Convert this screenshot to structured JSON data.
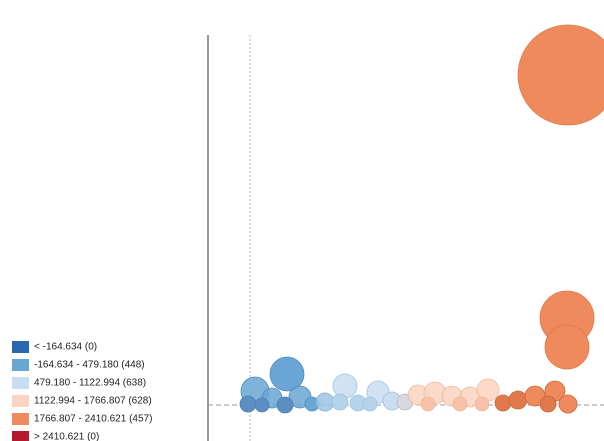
{
  "chart_data": {
    "type": "bubble",
    "legend": [
      {
        "label": "< -164.634 (0)",
        "color": "#2b67b0"
      },
      {
        "label": "-164.634 - 479.180 (448)",
        "color": "#6aa6d4"
      },
      {
        "label": "479.180 - 1122.994 (638)",
        "color": "#c9def0"
      },
      {
        "label": "1122.994 - 1766.807 (628)",
        "color": "#fbd3c0"
      },
      {
        "label": "1766.807 - 2410.621 (457)",
        "color": "#ef8a5c"
      },
      {
        "label": "> 2410.621 (0)",
        "color": "#b5182b"
      }
    ]
  }
}
